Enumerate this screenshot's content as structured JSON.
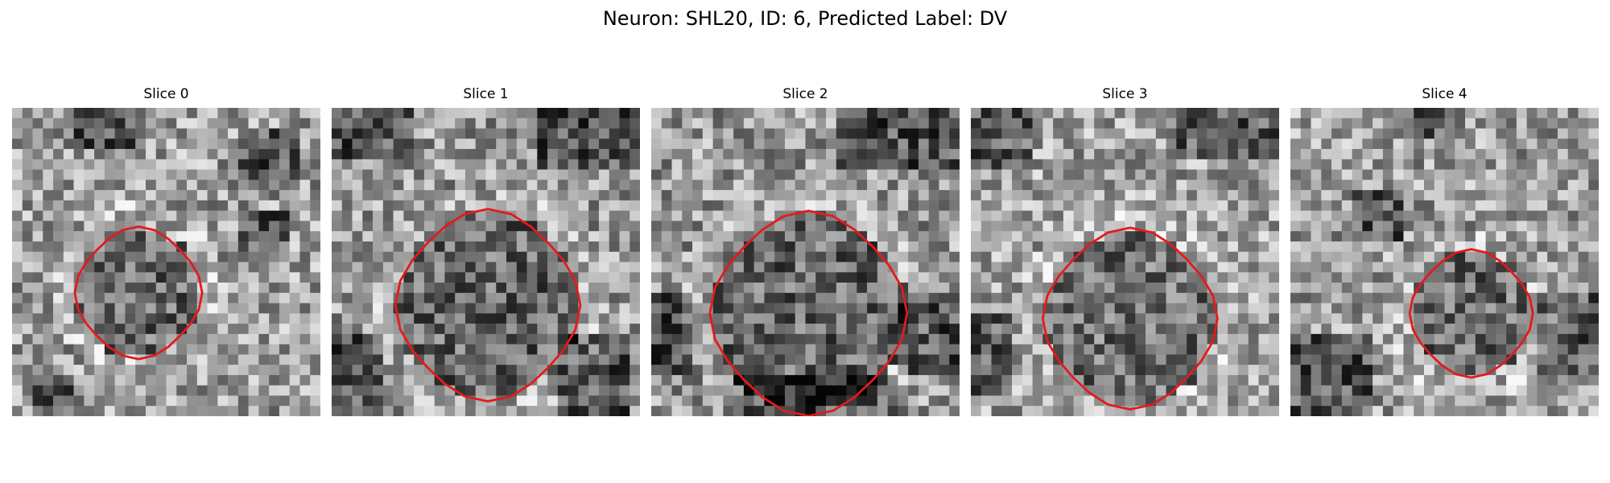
{
  "figure": {
    "title": "Neuron: SHL20, ID: 6, Predicted Label: DV"
  },
  "panels": [
    {
      "title": "Slice 0",
      "contour_color": "#e41a1c"
    },
    {
      "title": "Slice 1",
      "contour_color": "#e41a1c"
    },
    {
      "title": "Slice 2",
      "contour_color": "#e41a1c"
    },
    {
      "title": "Slice 3",
      "contour_color": "#e41a1c"
    },
    {
      "title": "Slice 4",
      "contour_color": "#e41a1c"
    }
  ],
  "colormap": "gray"
}
